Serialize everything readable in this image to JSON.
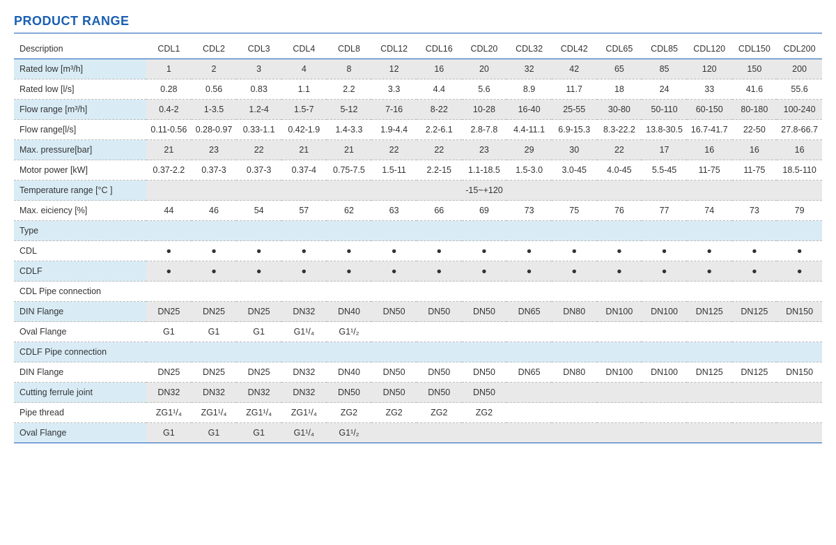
{
  "title": "PRODUCT RANGE",
  "headers": [
    "Description",
    "CDL1",
    "CDL2",
    "CDL3",
    "CDL4",
    "CDL8",
    "CDL12",
    "CDL16",
    "CDL20",
    "CDL32",
    "CDL42",
    "CDL65",
    "CDL85",
    "CDL120",
    "CDL150",
    "CDL200"
  ],
  "rows": [
    {
      "style": "blue",
      "label": "Rated low [m³/h]",
      "cells": [
        "1",
        "2",
        "3",
        "4",
        "8",
        "12",
        "16",
        "20",
        "32",
        "42",
        "65",
        "85",
        "120",
        "150",
        "200"
      ]
    },
    {
      "style": "white",
      "label": "Rated low [l/s]",
      "cells": [
        "0.28",
        "0.56",
        "0.83",
        "1.1",
        "2.2",
        "3.3",
        "4.4",
        "5.6",
        "8.9",
        "11.7",
        "18",
        "24",
        "33",
        "41.6",
        "55.6"
      ]
    },
    {
      "style": "blue",
      "label": "Flow range [m³/h]",
      "cells": [
        "0.4-2",
        "1-3.5",
        "1.2-4",
        "1.5-7",
        "5-12",
        "7-16",
        "8-22",
        "10-28",
        "16-40",
        "25-55",
        "30-80",
        "50-110",
        "60-150",
        "80-180",
        "100-240"
      ]
    },
    {
      "style": "white",
      "label": "Flow range[l/s]",
      "cells": [
        "0.11-0.56",
        "0.28-0.97",
        "0.33-1.1",
        "0.42-1.9",
        "1.4-3.3",
        "1.9-4.4",
        "2.2-6.1",
        "2.8-7.8",
        "4.4-11.1",
        "6.9-15.3",
        "8.3-22.2",
        "13.8-30.5",
        "16.7-41.7",
        "22-50",
        "27.8-66.7"
      ]
    },
    {
      "style": "blue",
      "label": "Max. pressure[bar]",
      "cells": [
        "21",
        "23",
        "22",
        "21",
        "21",
        "22",
        "22",
        "23",
        "29",
        "30",
        "22",
        "17",
        "16",
        "16",
        "16"
      ]
    },
    {
      "style": "white",
      "label": "Motor power [kW]",
      "cells": [
        "0.37-2.2",
        "0.37-3",
        "0.37-3",
        "0.37-4",
        "0.75-7.5",
        "1.5-11",
        "2.2-15",
        "1.1-18.5",
        "1.5-3.0",
        "3.0-45",
        "4.0-45",
        "5.5-45",
        "11-75",
        "11-75",
        "18.5-110"
      ]
    },
    {
      "style": "blue",
      "label": "Temperature range [°C ]",
      "merged": "-15~+120"
    },
    {
      "style": "white",
      "label": "Max. eiciency [%]",
      "cells": [
        "44",
        "46",
        "54",
        "57",
        "62",
        "63",
        "66",
        "69",
        "73",
        "75",
        "76",
        "77",
        "74",
        "73",
        "79"
      ]
    },
    {
      "style": "section-blue",
      "label": "Type",
      "cells": [
        "",
        "",
        "",
        "",
        "",
        "",
        "",
        "",
        "",
        "",
        "",
        "",
        "",
        "",
        ""
      ]
    },
    {
      "style": "white",
      "label": "CDL",
      "cells": [
        "●",
        "●",
        "●",
        "●",
        "●",
        "●",
        "●",
        "●",
        "●",
        "●",
        "●",
        "●",
        "●",
        "●",
        "●"
      ]
    },
    {
      "style": "blue",
      "label": "CDLF",
      "cells": [
        "●",
        "●",
        "●",
        "●",
        "●",
        "●",
        "●",
        "●",
        "●",
        "●",
        "●",
        "●",
        "●",
        "●",
        "●"
      ]
    },
    {
      "style": "section-white",
      "label": "CDL Pipe connection",
      "cells": [
        "",
        "",
        "",
        "",
        "",
        "",
        "",
        "",
        "",
        "",
        "",
        "",
        "",
        "",
        ""
      ]
    },
    {
      "style": "blue",
      "label": "DIN Flange",
      "cells": [
        "DN25",
        "DN25",
        "DN25",
        "DN32",
        "DN40",
        "DN50",
        "DN50",
        "DN50",
        "DN65",
        "DN80",
        "DN100",
        "DN100",
        "DN125",
        "DN125",
        "DN150"
      ]
    },
    {
      "style": "white",
      "label": "Oval Flange",
      "cells": [
        "G1",
        "G1",
        "G1",
        "G1¹/₄",
        "G1¹/₂",
        "",
        "",
        "",
        "",
        "",
        "",
        "",
        "",
        "",
        ""
      ]
    },
    {
      "style": "section-blue",
      "label": "CDLF Pipe connection",
      "cells": [
        "",
        "",
        "",
        "",
        "",
        "",
        "",
        "",
        "",
        "",
        "",
        "",
        "",
        "",
        ""
      ]
    },
    {
      "style": "white",
      "label": "DIN Flange",
      "cells": [
        "DN25",
        "DN25",
        "DN25",
        "DN32",
        "DN40",
        "DN50",
        "DN50",
        "DN50",
        "DN65",
        "DN80",
        "DN100",
        "DN100",
        "DN125",
        "DN125",
        "DN150"
      ]
    },
    {
      "style": "blue",
      "label": "Cutting ferrule joint",
      "cells": [
        "DN32",
        "DN32",
        "DN32",
        "DN32",
        "DN50",
        "DN50",
        "DN50",
        "DN50",
        "",
        "",
        "",
        "",
        "",
        "",
        ""
      ]
    },
    {
      "style": "white",
      "label": "Pipe thread",
      "cells": [
        "ZG1¹/₄",
        "ZG1¹/₄",
        "ZG1¹/₄",
        "ZG1¹/₄",
        "ZG2",
        "ZG2",
        "ZG2",
        "ZG2",
        "",
        "",
        "",
        "",
        "",
        "",
        ""
      ]
    },
    {
      "style": "blue",
      "label": "Oval Flange",
      "cells": [
        "G1",
        "G1",
        "G1",
        "G1¹/₄",
        "G1¹/₂",
        "",
        "",
        "",
        "",
        "",
        "",
        "",
        "",
        "",
        ""
      ]
    }
  ]
}
